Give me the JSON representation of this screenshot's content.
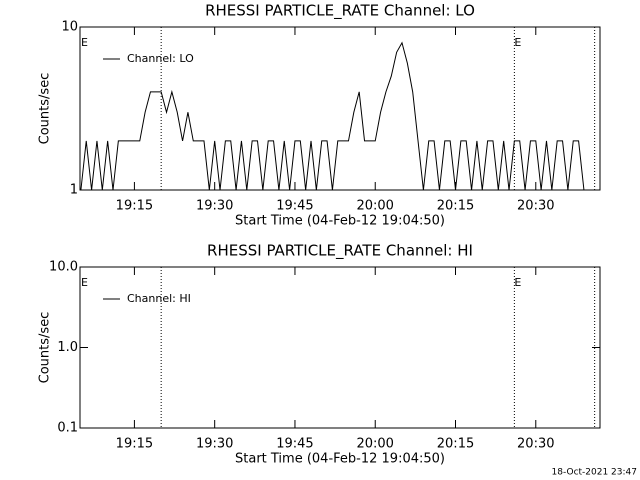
{
  "footer": "18-Oct-2021 23:47",
  "chart_data": [
    {
      "type": "line",
      "title": "RHESSI PARTICLE_RATE Channel: LO",
      "y_label": "Counts/sec",
      "x_label": "Start Time (04-Feb-12 19:04:50)",
      "log_y": true,
      "ylim": [
        1,
        10
      ],
      "yticks": [
        1,
        10
      ],
      "xlim": [
        "19:04:50",
        "20:42"
      ],
      "xticks": [
        "19:15",
        "19:30",
        "19:45",
        "20:00",
        "20:15",
        "20:30"
      ],
      "vlines": [
        "19:20",
        "20:26",
        "20:41"
      ],
      "annotations": [
        {
          "x": "19:05",
          "text": "E"
        },
        {
          "x": "20:26",
          "text": "E"
        }
      ],
      "legend": "upper left",
      "x": [
        "19:05",
        "19:06",
        "19:07",
        "19:08",
        "19:09",
        "19:10",
        "19:11",
        "19:12",
        "19:13",
        "19:14",
        "19:15",
        "19:16",
        "19:17",
        "19:18",
        "19:19",
        "19:20",
        "19:21",
        "19:22",
        "19:23",
        "19:24",
        "19:25",
        "19:26",
        "19:27",
        "19:28",
        "19:29",
        "19:30",
        "19:31",
        "19:32",
        "19:33",
        "19:34",
        "19:35",
        "19:36",
        "19:37",
        "19:38",
        "19:39",
        "19:40",
        "19:41",
        "19:42",
        "19:43",
        "19:44",
        "19:45",
        "19:46",
        "19:47",
        "19:48",
        "19:49",
        "19:50",
        "19:51",
        "19:52",
        "19:53",
        "19:54",
        "19:55",
        "19:56",
        "19:57",
        "19:58",
        "19:59",
        "20:00",
        "20:01",
        "20:02",
        "20:03",
        "20:04",
        "20:05",
        "20:06",
        "20:07",
        "20:08",
        "20:09",
        "20:10",
        "20:11",
        "20:12",
        "20:13",
        "20:14",
        "20:15",
        "20:16",
        "20:17",
        "20:18",
        "20:19",
        "20:20",
        "20:21",
        "20:22",
        "20:23",
        "20:24",
        "20:25",
        "20:26",
        "20:27",
        "20:28",
        "20:29",
        "20:30",
        "20:31",
        "20:32",
        "20:33",
        "20:34",
        "20:35",
        "20:36",
        "20:37",
        "20:38",
        "20:39",
        "20:40"
      ],
      "series": [
        {
          "name": "Channel: LO",
          "color": "#000000",
          "values": [
            1,
            2,
            1,
            2,
            1,
            2,
            1,
            2,
            2,
            2,
            2,
            2,
            3,
            4,
            4,
            4,
            3,
            4,
            3,
            2,
            3,
            2,
            2,
            2,
            1,
            2,
            1,
            2,
            2,
            1,
            2,
            1,
            2,
            2,
            1,
            2,
            2,
            1,
            2,
            1,
            2,
            2,
            1,
            2,
            1,
            2,
            2,
            1,
            2,
            2,
            2,
            3,
            4,
            2,
            2,
            2,
            3,
            4,
            5,
            7,
            8,
            6,
            4,
            2,
            1,
            2,
            2,
            1,
            2,
            2,
            1,
            2,
            2,
            1,
            2,
            1,
            2,
            2,
            1,
            2,
            1,
            2,
            2,
            1,
            2,
            2,
            1,
            2,
            1,
            2,
            2,
            1,
            2,
            2,
            1,
            1
          ]
        }
      ]
    },
    {
      "type": "line",
      "title": "RHESSI PARTICLE_RATE Channel: HI",
      "y_label": "Counts/sec",
      "x_label": "Start Time (04-Feb-12 19:04:50)",
      "log_y": true,
      "ylim": [
        0.1,
        10
      ],
      "yticks": [
        0.1,
        {
          "value": 1,
          "label": "1.0"
        },
        {
          "value": 10,
          "label": "10.0"
        }
      ],
      "xlim": [
        "19:04:50",
        "20:42"
      ],
      "xticks": [
        "19:15",
        "19:30",
        "19:45",
        "20:00",
        "20:15",
        "20:30"
      ],
      "vlines": [
        "19:20",
        "20:26",
        "20:41"
      ],
      "annotations": [
        {
          "x": "19:05",
          "text": "E"
        },
        {
          "x": "20:26",
          "text": "E"
        }
      ],
      "legend": "upper left",
      "x": [],
      "series": [
        {
          "name": "Channel: HI",
          "color": "#000000",
          "values": []
        }
      ]
    }
  ]
}
